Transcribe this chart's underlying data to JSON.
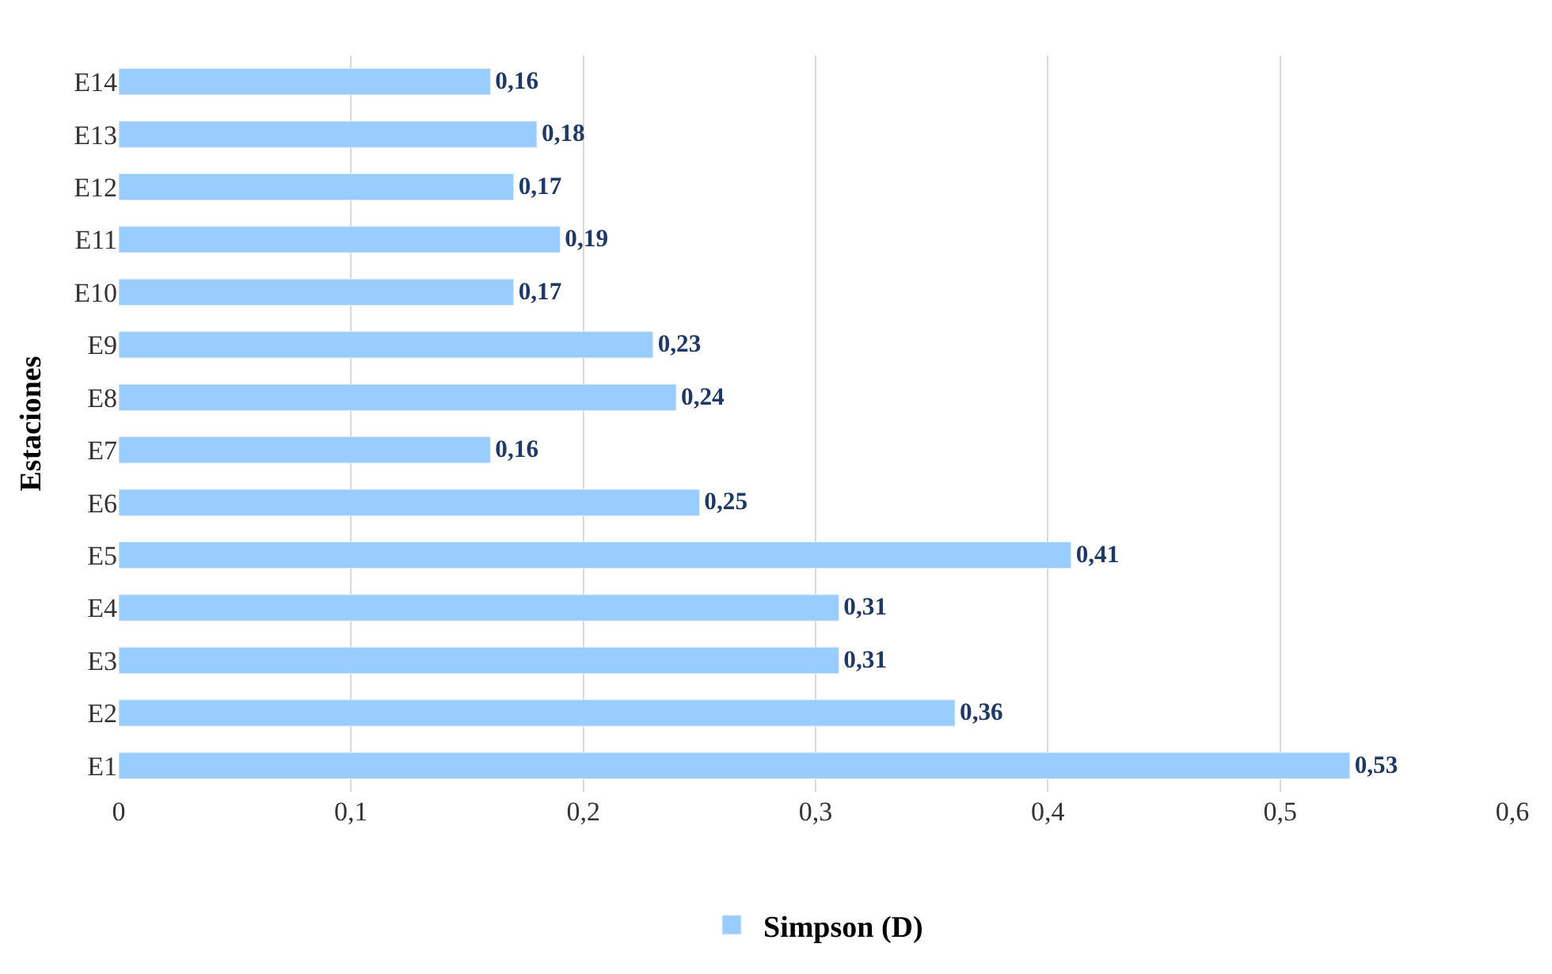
{
  "chart_data": {
    "type": "bar",
    "orientation": "horizontal",
    "ylabel": "Estaciones",
    "categories": [
      "E14",
      "E13",
      "E12",
      "E11",
      "E10",
      "E9",
      "E8",
      "E7",
      "E6",
      "E5",
      "E4",
      "E3",
      "E2",
      "E1"
    ],
    "series": [
      {
        "name": "Simpson (D)",
        "color": "#99ccff",
        "values": [
          0.16,
          0.18,
          0.17,
          0.19,
          0.17,
          0.23,
          0.24,
          0.16,
          0.25,
          0.41,
          0.31,
          0.31,
          0.36,
          0.53
        ],
        "value_labels": [
          "0,16",
          "0,18",
          "0,17",
          "0,19",
          "0,17",
          "0,23",
          "0,24",
          "0,16",
          "0,25",
          "0,41",
          "0,31",
          "0,31",
          "0,36",
          "0,53"
        ]
      }
    ],
    "xlim": [
      0,
      0.6
    ],
    "xticks": [
      0,
      {
        "value": 0.1,
        "label": "0,1"
      },
      {
        "value": 0.2,
        "label": "0,2"
      },
      {
        "value": 0.3,
        "label": "0,3"
      },
      {
        "value": 0.4,
        "label": "0,4"
      },
      {
        "value": 0.5,
        "label": "0,5"
      },
      {
        "value": 0.6,
        "label": "0,6"
      }
    ],
    "grid": "x",
    "legend": "bottom"
  }
}
